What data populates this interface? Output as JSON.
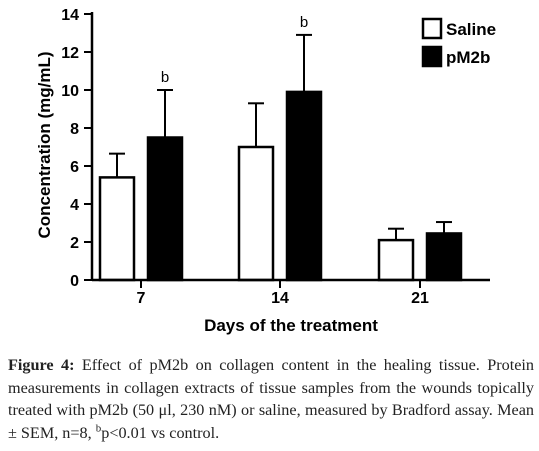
{
  "chart_data": {
    "type": "bar",
    "categories": [
      "7",
      "14",
      "21"
    ],
    "series": [
      {
        "name": "Saline",
        "values": [
          5.4,
          7.0,
          2.1
        ],
        "errors": [
          1.25,
          2.3,
          0.6
        ],
        "color": "#ffffff"
      },
      {
        "name": "pM2b",
        "values": [
          7.5,
          9.9,
          2.45
        ],
        "errors": [
          2.5,
          3.0,
          0.6
        ],
        "color": "#000000"
      }
    ],
    "annotations": [
      {
        "category": "7",
        "series": "pM2b",
        "text": "b"
      },
      {
        "category": "14",
        "series": "pM2b",
        "text": "b"
      }
    ],
    "xlabel": "Days of the treatment",
    "ylabel": "Concentration (mg/mL)",
    "ylim": [
      0,
      14
    ],
    "yticks": [
      "0",
      "2",
      "4",
      "6",
      "8",
      "10",
      "12",
      "14"
    ],
    "legend_position": "top-right",
    "grid": false
  },
  "caption": {
    "label": "Figure 4:",
    "text": " Effect of pM2b on collagen content in the healing tissue. Protein measurements in collagen extracts of tissue samples from the wounds topically treated with pM2b (50 μl, 230 nM) or saline, measured by Bradford assay. Mean ± SEM, n=8, ",
    "sup": "b",
    "tail": "p<0.01 vs control."
  }
}
